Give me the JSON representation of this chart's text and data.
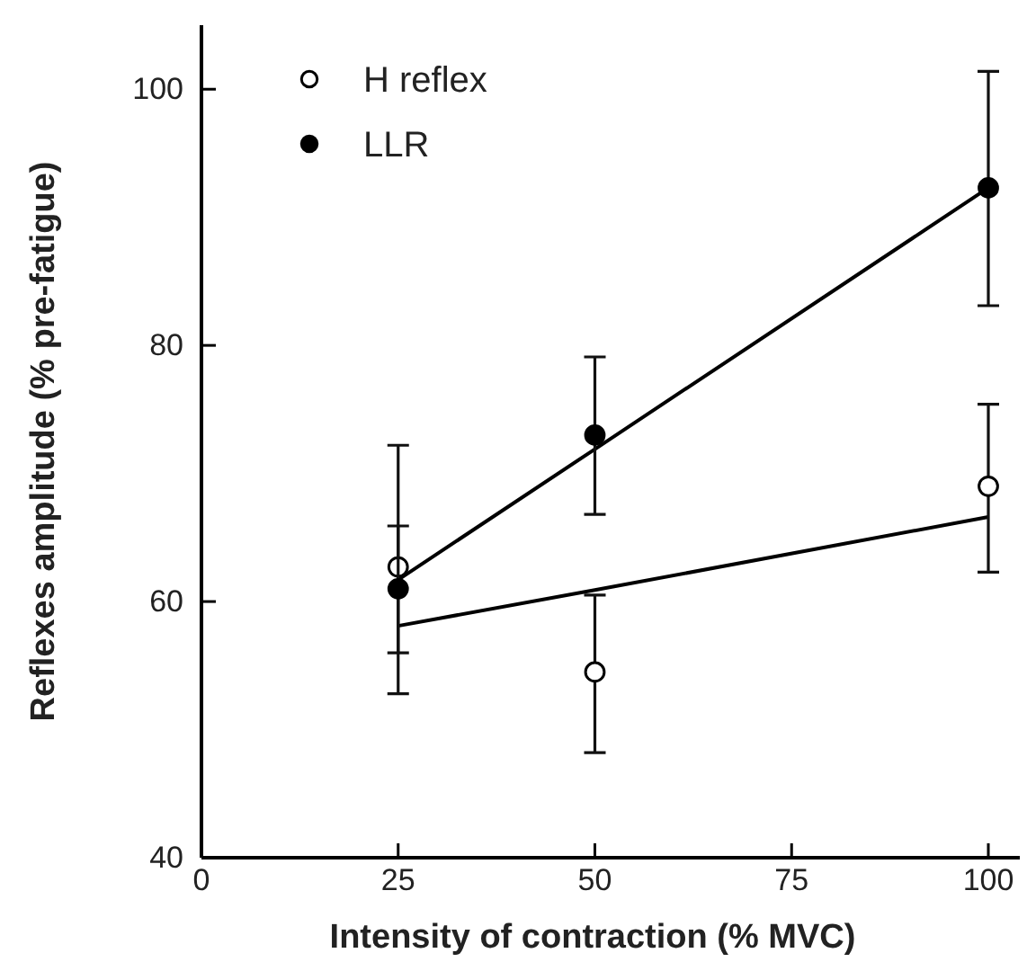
{
  "chart_data": {
    "type": "scatter",
    "xlabel": "Intensity of contraction (% MVC)",
    "ylabel": "Reflexes amplitude (% pre-fatigue)",
    "x": [
      25,
      50,
      100
    ],
    "xlim": [
      0,
      104
    ],
    "xticks": [
      0,
      25,
      50,
      75,
      100
    ],
    "ylim": [
      40,
      105
    ],
    "yticks": [
      40,
      60,
      80,
      100
    ],
    "grid": false,
    "legend": "top left",
    "marker": "circle",
    "series": [
      {
        "name": "H reflex",
        "color": "#ffffff",
        "values": [
          62.7,
          54.5,
          69.0
        ],
        "errors": [
          [
            56.0,
            65.9
          ],
          [
            48.2,
            60.5
          ],
          [
            62.3,
            75.4
          ]
        ]
      },
      {
        "name": "LLR",
        "color": "#000000",
        "values": [
          61.0,
          73.0,
          92.3
        ],
        "errors": [
          [
            52.8,
            72.2
          ],
          [
            66.8,
            79.1
          ],
          [
            83.1,
            101.4
          ]
        ]
      },
      {
        "type": "line",
        "color": "#000000",
        "values": [
          58.1,
          60.9,
          66.6
        ],
        "marker": "none"
      },
      {
        "type": "line",
        "color": "#000000",
        "values": [
          61.7,
          71.9,
          92.3
        ],
        "marker": "none"
      }
    ]
  }
}
